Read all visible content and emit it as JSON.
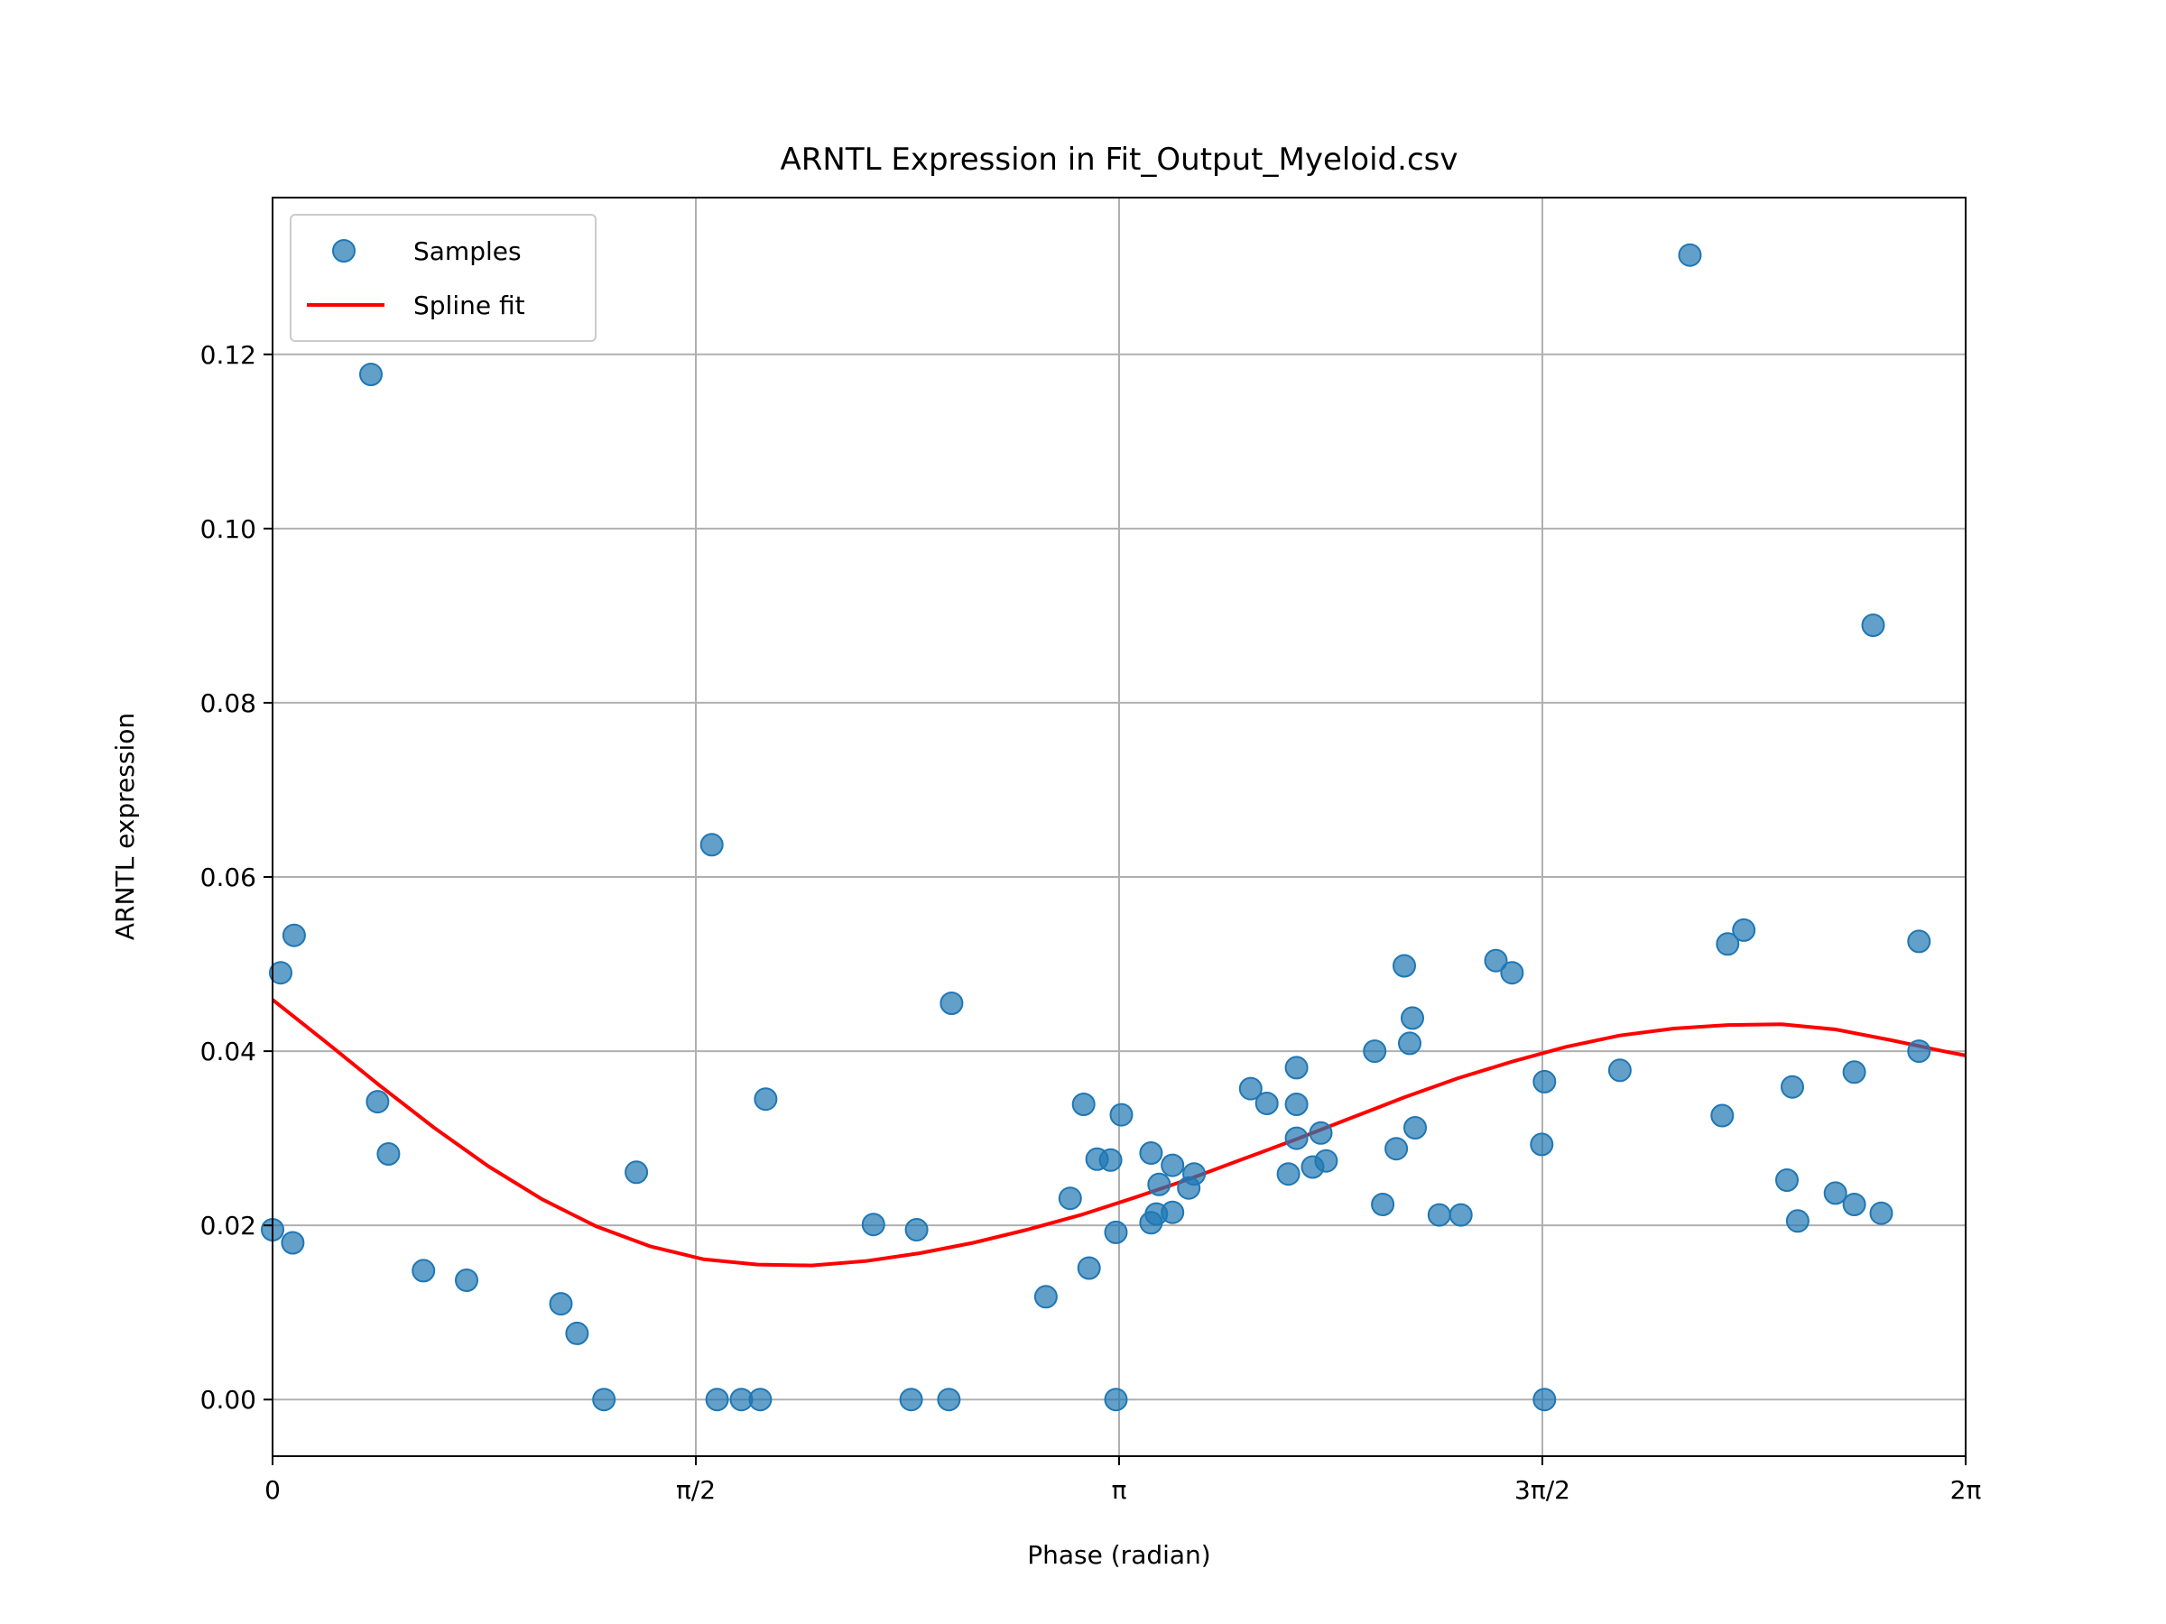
{
  "chart_data": {
    "type": "scatter",
    "title": "ARNTL Expression in Fit_Output_Myeloid.csv",
    "xlabel": "Phase (radian)",
    "ylabel": "ARNTL expression",
    "xlim": [
      0,
      6.2832
    ],
    "ylim": [
      -0.0065,
      0.138
    ],
    "grid": true,
    "legend_position": "top-left",
    "x_ticks": [
      {
        "value": 0,
        "label": "0"
      },
      {
        "value": 1.5708,
        "label": "π/2"
      },
      {
        "value": 3.1416,
        "label": "π"
      },
      {
        "value": 4.7124,
        "label": "3π/2"
      },
      {
        "value": 6.2832,
        "label": "2π"
      }
    ],
    "y_ticks": [
      {
        "value": 0.0,
        "label": "0.00"
      },
      {
        "value": 0.02,
        "label": "0.02"
      },
      {
        "value": 0.04,
        "label": "0.04"
      },
      {
        "value": 0.06,
        "label": "0.06"
      },
      {
        "value": 0.08,
        "label": "0.08"
      },
      {
        "value": 0.1,
        "label": "0.10"
      },
      {
        "value": 0.12,
        "label": "0.12"
      }
    ],
    "series": [
      {
        "name": "Samples",
        "kind": "scatter",
        "color": "#1f77b4",
        "points": [
          [
            0.0,
            0.0195
          ],
          [
            0.03,
            0.049
          ],
          [
            0.08,
            0.0533
          ],
          [
            0.075,
            0.018
          ],
          [
            0.365,
            0.1177
          ],
          [
            0.39,
            0.0342
          ],
          [
            0.43,
            0.0282
          ],
          [
            0.56,
            0.0148
          ],
          [
            0.72,
            0.0137
          ],
          [
            1.07,
            0.011
          ],
          [
            1.13,
            0.0076
          ],
          [
            1.23,
            0.0
          ],
          [
            1.35,
            0.0261
          ],
          [
            1.63,
            0.0637
          ],
          [
            1.65,
            0.0
          ],
          [
            1.74,
            0.0
          ],
          [
            1.81,
            0.0
          ],
          [
            1.83,
            0.0345
          ],
          [
            2.23,
            0.0201
          ],
          [
            2.37,
            0.0
          ],
          [
            2.39,
            0.0195
          ],
          [
            2.51,
            0.0
          ],
          [
            2.52,
            0.0455
          ],
          [
            2.87,
            0.0118
          ],
          [
            2.96,
            0.0231
          ],
          [
            3.01,
            0.0339
          ],
          [
            3.03,
            0.0151
          ],
          [
            3.06,
            0.0276
          ],
          [
            3.11,
            0.0275
          ],
          [
            3.13,
            0.0192
          ],
          [
            3.13,
            0.0
          ],
          [
            3.15,
            0.0327
          ],
          [
            3.26,
            0.0283
          ],
          [
            3.26,
            0.0203
          ],
          [
            3.28,
            0.0213
          ],
          [
            3.29,
            0.0247
          ],
          [
            3.34,
            0.0269
          ],
          [
            3.34,
            0.0215
          ],
          [
            3.4,
            0.0243
          ],
          [
            3.42,
            0.0259
          ],
          [
            3.63,
            0.0357
          ],
          [
            3.69,
            0.034
          ],
          [
            3.77,
            0.0259
          ],
          [
            3.8,
            0.0381
          ],
          [
            3.8,
            0.0339
          ],
          [
            3.8,
            0.03
          ],
          [
            3.86,
            0.0267
          ],
          [
            3.89,
            0.0306
          ],
          [
            3.91,
            0.0274
          ],
          [
            4.09,
            0.04
          ],
          [
            4.12,
            0.0224
          ],
          [
            4.17,
            0.0288
          ],
          [
            4.2,
            0.0498
          ],
          [
            4.22,
            0.0409
          ],
          [
            4.23,
            0.0438
          ],
          [
            4.24,
            0.0312
          ],
          [
            4.33,
            0.0212
          ],
          [
            4.41,
            0.0212
          ],
          [
            4.54,
            0.0504
          ],
          [
            4.6,
            0.049
          ],
          [
            4.71,
            0.0293
          ],
          [
            4.72,
            0.0365
          ],
          [
            4.72,
            0.0
          ],
          [
            5.0,
            0.0378
          ],
          [
            5.26,
            0.1314
          ],
          [
            5.38,
            0.0326
          ],
          [
            5.4,
            0.0523
          ],
          [
            5.46,
            0.0539
          ],
          [
            5.62,
            0.0252
          ],
          [
            5.64,
            0.0359
          ],
          [
            5.66,
            0.0205
          ],
          [
            5.8,
            0.0237
          ],
          [
            5.87,
            0.0224
          ],
          [
            5.87,
            0.0376
          ],
          [
            5.94,
            0.0889
          ],
          [
            5.97,
            0.0214
          ],
          [
            6.11,
            0.0526
          ],
          [
            6.11,
            0.04
          ]
        ]
      },
      {
        "name": "Spline fit",
        "kind": "line",
        "color": "#ff0000",
        "points": [
          [
            0.0,
            0.0459
          ],
          [
            0.2,
            0.041
          ],
          [
            0.4,
            0.036
          ],
          [
            0.6,
            0.0312
          ],
          [
            0.8,
            0.0268
          ],
          [
            1.0,
            0.023
          ],
          [
            1.2,
            0.0199
          ],
          [
            1.4,
            0.0176
          ],
          [
            1.6,
            0.0161
          ],
          [
            1.8,
            0.0155
          ],
          [
            2.0,
            0.0154
          ],
          [
            2.2,
            0.0159
          ],
          [
            2.4,
            0.0168
          ],
          [
            2.6,
            0.018
          ],
          [
            2.8,
            0.0195
          ],
          [
            3.0,
            0.0212
          ],
          [
            3.2,
            0.0232
          ],
          [
            3.4,
            0.0253
          ],
          [
            3.6,
            0.0276
          ],
          [
            3.8,
            0.0299
          ],
          [
            4.0,
            0.0323
          ],
          [
            4.2,
            0.0347
          ],
          [
            4.4,
            0.0369
          ],
          [
            4.6,
            0.0388
          ],
          [
            4.8,
            0.0405
          ],
          [
            5.0,
            0.0418
          ],
          [
            5.2,
            0.0426
          ],
          [
            5.4,
            0.043
          ],
          [
            5.6,
            0.0431
          ],
          [
            5.8,
            0.0425
          ],
          [
            6.0,
            0.0413
          ],
          [
            6.2,
            0.04
          ],
          [
            6.2832,
            0.0395
          ]
        ]
      }
    ]
  }
}
